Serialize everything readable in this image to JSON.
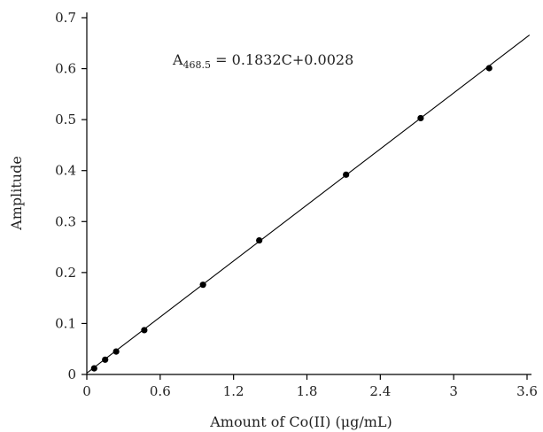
{
  "chart_data": {
    "type": "scatter",
    "xlabel": "Amount of Co(II) (μg/mL)",
    "ylabel": "Amplitude",
    "xlim": [
      0,
      3.6
    ],
    "ylim": [
      0,
      0.7
    ],
    "x_ticks": [
      "0",
      "0.6",
      "1.2",
      "1.8",
      "2.4",
      "3",
      "3.6"
    ],
    "y_ticks": [
      "0",
      "0.1",
      "0.2",
      "0.3",
      "0.4",
      "0.5",
      "0.6",
      "0.7"
    ],
    "series": [
      {
        "points": [
          {
            "x": 0.06,
            "y": 0.012
          },
          {
            "x": 0.15,
            "y": 0.029
          },
          {
            "x": 0.24,
            "y": 0.045
          },
          {
            "x": 0.47,
            "y": 0.087
          },
          {
            "x": 0.95,
            "y": 0.176
          },
          {
            "x": 1.41,
            "y": 0.263
          },
          {
            "x": 2.12,
            "y": 0.392
          },
          {
            "x": 2.73,
            "y": 0.503
          },
          {
            "x": 3.29,
            "y": 0.601
          }
        ]
      }
    ],
    "fit_line": {
      "slope": 0.1832,
      "intercept": 0.0028,
      "x_start": 0.0,
      "x_end": 3.62
    },
    "annotation": {
      "prefix": "A",
      "subscript": "468.5",
      "text": " = 0.1832C+0.0028"
    },
    "grid": false,
    "legend": "none"
  }
}
